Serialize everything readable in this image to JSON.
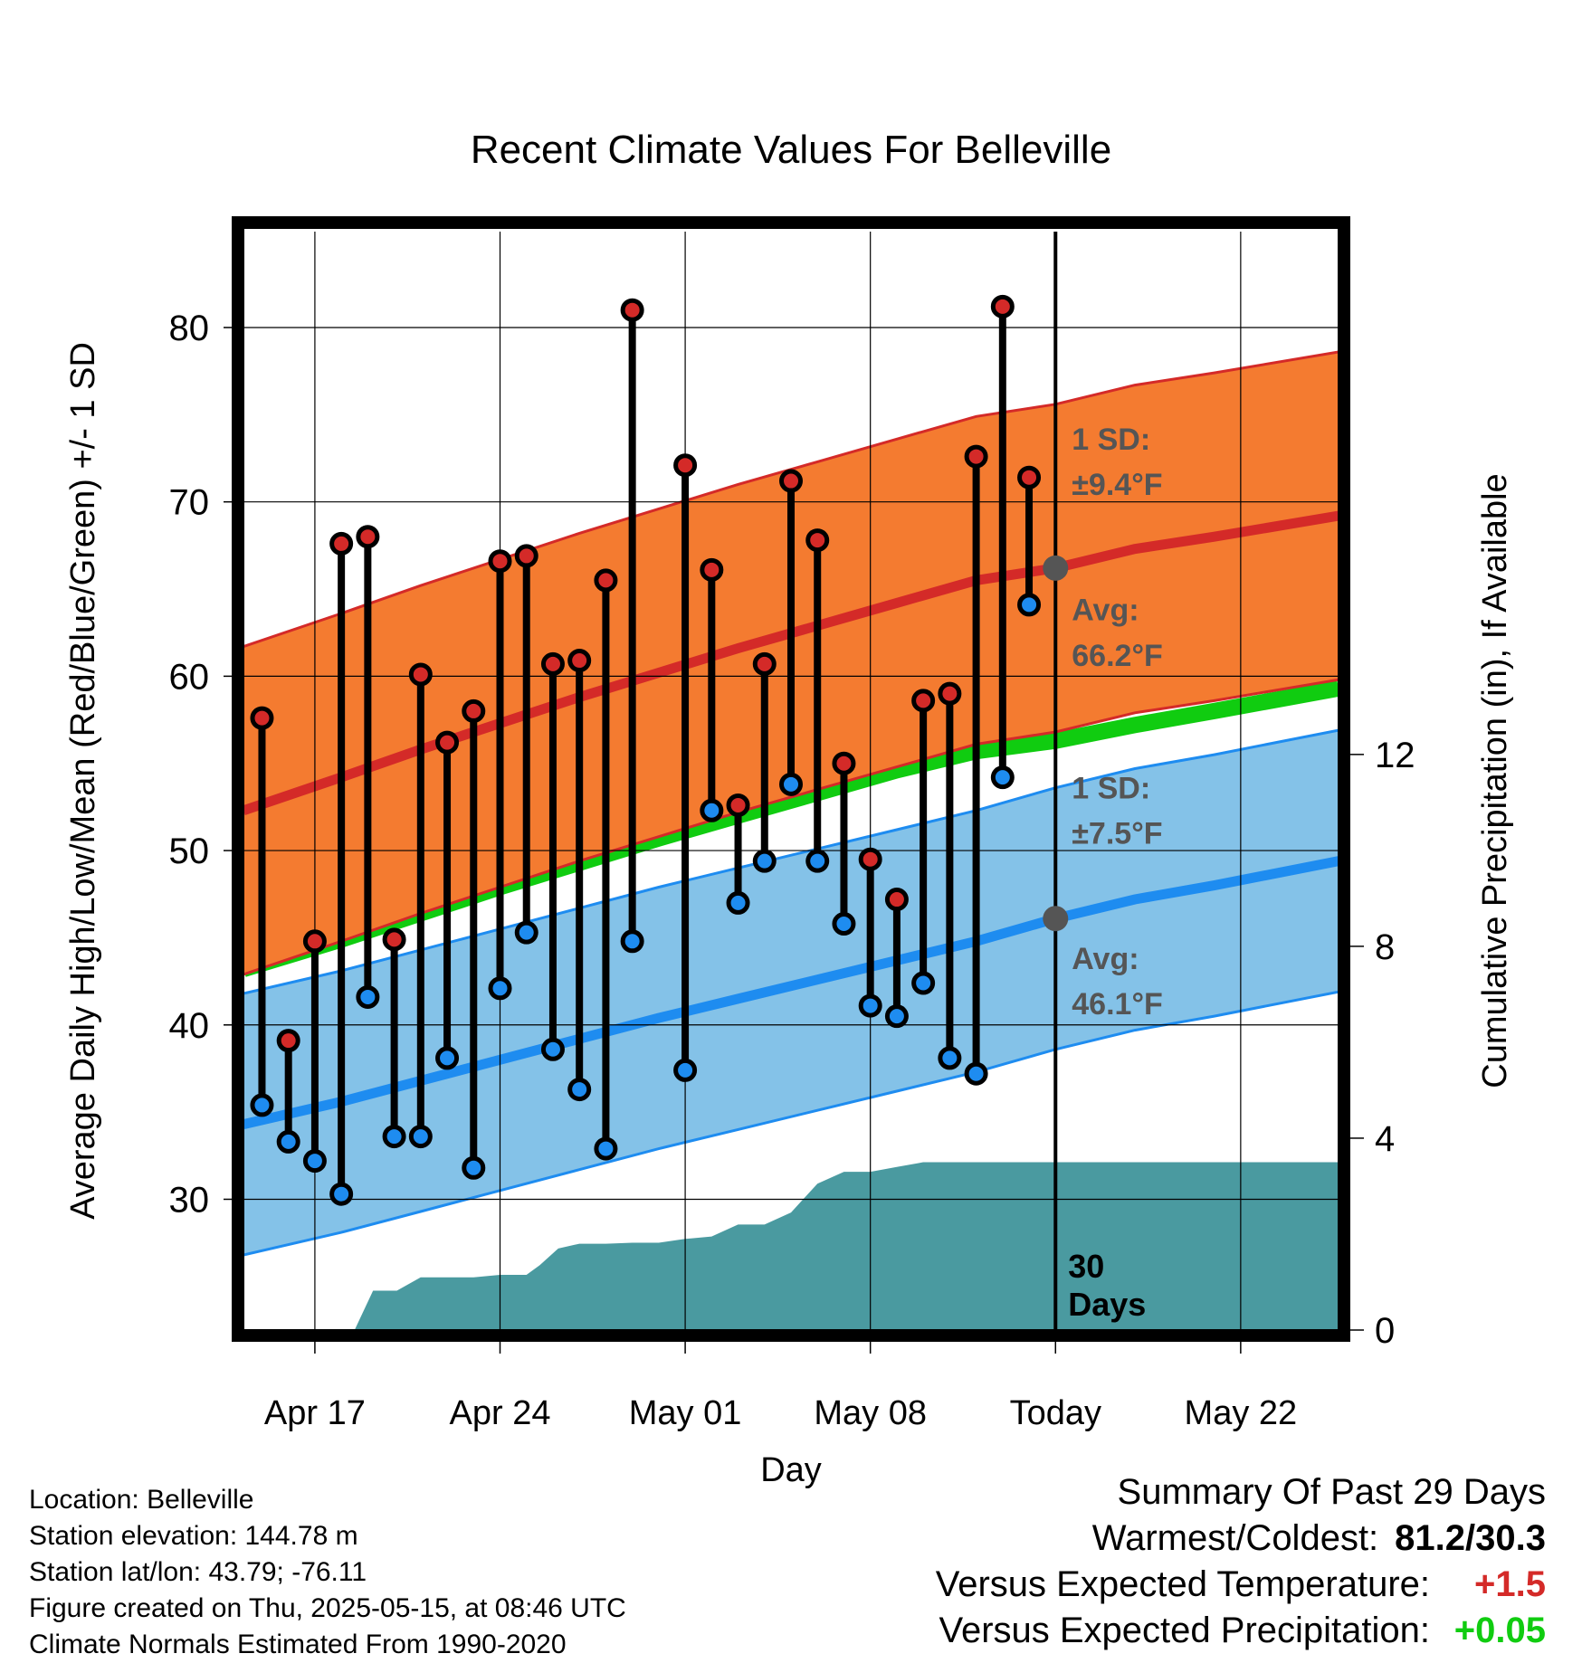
{
  "title": "Recent Climate Values For Belleville",
  "chart_data": {
    "type": "line",
    "title": "Recent Climate Values For Belleville",
    "xlabel": "Day",
    "ylabel_left": "Average Daily High/Low/Mean (Red/Blue/Green) +/- 1 SD",
    "ylabel_right": "Cumulative Precipitation (in), If Available",
    "xlim": [
      13.3,
      54.7
    ],
    "ylim_left": [
      22.5,
      85.5
    ],
    "ylim_right": [
      0,
      22.9
    ],
    "x_ticks": [
      {
        "x": 16,
        "label": "Apr 17"
      },
      {
        "x": 23,
        "label": "Apr 24"
      },
      {
        "x": 30,
        "label": "May 01"
      },
      {
        "x": 37,
        "label": "May 08"
      },
      {
        "x": 44,
        "label": "Today"
      },
      {
        "x": 51,
        "label": "May 22"
      }
    ],
    "y_ticks_left": [
      30,
      40,
      50,
      60,
      70,
      80
    ],
    "y_ticks_right": [
      0,
      4,
      8,
      12
    ],
    "grid": true,
    "today_x": 44,
    "today_label": "30 Days",
    "normals": {
      "x": [
        13.3,
        17,
        20,
        23,
        26,
        29,
        32,
        35,
        38,
        41,
        44,
        47,
        50,
        54.7
      ],
      "high_avg": [
        52.3,
        54.2,
        55.8,
        57.3,
        58.8,
        60.2,
        61.6,
        62.9,
        64.2,
        65.5,
        66.2,
        67.3,
        68.0,
        69.2
      ],
      "high_sd": 9.4,
      "low_avg": [
        34.3,
        35.6,
        36.8,
        38.0,
        39.2,
        40.4,
        41.5,
        42.6,
        43.7,
        44.8,
        46.1,
        47.2,
        48.0,
        49.4
      ],
      "low_sd": 7.5,
      "mean_avg": [
        43.2,
        44.9,
        46.4,
        47.9,
        49.3,
        50.7,
        52.0,
        53.3,
        54.6,
        55.7,
        56.3,
        57.2,
        58.0,
        59.3
      ]
    },
    "series": [
      {
        "name": "High",
        "x": [
          14,
          15,
          16,
          17,
          18,
          19,
          20,
          21,
          22,
          23,
          24,
          25,
          26,
          27,
          28,
          29,
          30,
          31,
          32,
          33,
          34,
          35,
          36,
          37,
          38,
          39,
          40,
          41,
          42,
          43
        ],
        "values": [
          57.6,
          39.1,
          44.8,
          67.6,
          68.0,
          44.9,
          60.1,
          56.2,
          58.0,
          66.6,
          66.9,
          60.7,
          60.9,
          65.5,
          81.0,
          null,
          72.1,
          66.1,
          52.6,
          60.7,
          71.2,
          67.8,
          55.0,
          49.5,
          47.2,
          58.6,
          59.0,
          72.6,
          81.2,
          71.4
        ]
      },
      {
        "name": "Low",
        "x": [
          14,
          15,
          16,
          17,
          18,
          19,
          20,
          21,
          22,
          23,
          24,
          25,
          26,
          27,
          28,
          29,
          30,
          31,
          32,
          33,
          34,
          35,
          36,
          37,
          38,
          39,
          40,
          41,
          42,
          43
        ],
        "values": [
          35.4,
          33.3,
          32.2,
          30.3,
          41.6,
          33.6,
          33.6,
          38.1,
          31.8,
          42.1,
          45.3,
          38.6,
          36.3,
          32.9,
          44.8,
          null,
          37.4,
          52.3,
          47.0,
          49.4,
          53.8,
          49.4,
          45.8,
          41.1,
          40.5,
          42.4,
          38.1,
          37.2,
          54.2,
          64.1
        ]
      },
      {
        "name": "Cumulative Precipitation",
        "x": [
          17.5,
          18.2,
          19.1,
          20,
          21,
          22,
          23,
          24,
          24.5,
          25.2,
          26,
          27,
          28,
          29,
          30,
          31,
          32,
          33,
          34,
          35,
          36,
          37,
          38,
          39,
          54.7
        ],
        "values": [
          0,
          0.82,
          0.82,
          1.1,
          1.1,
          1.1,
          1.15,
          1.15,
          1.35,
          1.7,
          1.8,
          1.8,
          1.82,
          1.82,
          1.9,
          1.95,
          2.2,
          2.2,
          2.45,
          3.05,
          3.3,
          3.3,
          3.4,
          3.5,
          3.5
        ]
      }
    ],
    "annotations": [
      {
        "text": [
          "1 SD:",
          "±9.4°F"
        ]
      },
      {
        "text": [
          "Avg:",
          "66.2°F"
        ]
      },
      {
        "text": [
          "1 SD:",
          "±7.5°F"
        ]
      },
      {
        "text": [
          "Avg:",
          "46.1°F"
        ]
      }
    ],
    "colors": {
      "high": "#d42a28",
      "high_band": "#f47b30",
      "low": "#1e8cf0",
      "low_band": "#84c2e8",
      "mean": "#10cc10",
      "precip": "#4a9aa0",
      "avg_marker": "#555555",
      "annotation_text": "#555555"
    }
  },
  "footer": {
    "location": "Location: Belleville",
    "elevation": "Station elevation: 144.78 m",
    "latlon": "Station lat/lon: 43.79; -76.11",
    "created": "Figure created on Thu, 2025-05-15, at 08:46 UTC",
    "normals": "Climate Normals Estimated From 1990-2020"
  },
  "summary": {
    "heading": "Summary Of Past 29 Days",
    "warm_cold_label": "Warmest/Coldest:",
    "warm_cold_value": "81.2/30.3",
    "temp_label": "Versus Expected Temperature:",
    "temp_value": "+1.5",
    "temp_color": "#d42a28",
    "precip_label": "Versus Expected Precipitation:",
    "precip_value": "+0.05",
    "precip_color": "#10cc10"
  }
}
